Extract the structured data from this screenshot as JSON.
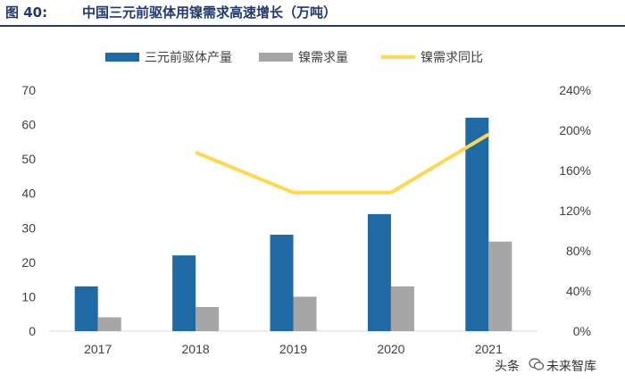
{
  "header": {
    "figure_label": "图 40:",
    "title_text": "中国三元前驱体用镍需求高速增长（万吨）"
  },
  "watermark": {
    "source_prefix": "头条",
    "account": "未来智库"
  },
  "colors": {
    "bar_primary": "#1f6aa5",
    "bar_secondary": "#a6a6a6",
    "line": "#ffd84d",
    "title": "#1f3a6b"
  },
  "chart_data": {
    "type": "bar",
    "title": "中国三元前驱体用镍需求高速增长（万吨）",
    "categories": [
      "2017",
      "2018",
      "2019",
      "2020",
      "2021"
    ],
    "series": [
      {
        "name": "三元前驱体产量",
        "kind": "bar",
        "axis": "left",
        "color": "#1f6aa5",
        "values": [
          13,
          22,
          28,
          34,
          62
        ]
      },
      {
        "name": "镍需求量",
        "kind": "bar",
        "axis": "left",
        "color": "#a6a6a6",
        "values": [
          4,
          7,
          10,
          13,
          26
        ]
      },
      {
        "name": "镍需求同比",
        "kind": "line",
        "axis": "right",
        "color": "#ffd84d",
        "values": [
          null,
          1.78,
          1.38,
          1.38,
          1.96
        ]
      }
    ],
    "y_left": {
      "min": 0,
      "max": 70,
      "ticks": [
        "0",
        "10",
        "20",
        "30",
        "40",
        "50",
        "60",
        "70"
      ]
    },
    "y_right": {
      "min": 0,
      "max": 2.4,
      "ticks": [
        "0%",
        "40%",
        "80%",
        "120%",
        "160%",
        "200%",
        "240%"
      ]
    },
    "legend_position": "top-center",
    "grid": false
  }
}
